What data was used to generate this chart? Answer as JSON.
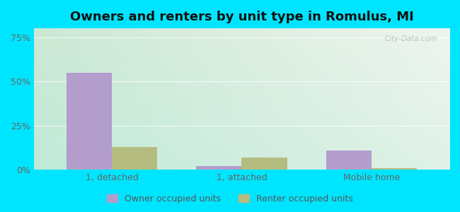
{
  "title": "Owners and renters by unit type in Romulus, MI",
  "categories": [
    "1, detached",
    "1, attached",
    "Mobile home"
  ],
  "owner_values": [
    55,
    2,
    11
  ],
  "renter_values": [
    13,
    7,
    1
  ],
  "owner_color": "#b39dcc",
  "renter_color": "#b5bc80",
  "yticks": [
    0,
    25,
    50,
    75
  ],
  "ytick_labels": [
    "0%",
    "25%",
    "50%",
    "75%"
  ],
  "ylim": [
    0,
    80
  ],
  "bar_width": 0.35,
  "bg_top_left": "#d8edd8",
  "bg_top_right": "#f0f5ee",
  "bg_bottom_left": "#c8eed8",
  "bg_bottom_right": "#e8f8f0",
  "outer_bg": "#00e5ff",
  "title_fontsize": 13,
  "legend_labels": [
    "Owner occupied units",
    "Renter occupied units"
  ],
  "watermark": "City-Data.com"
}
